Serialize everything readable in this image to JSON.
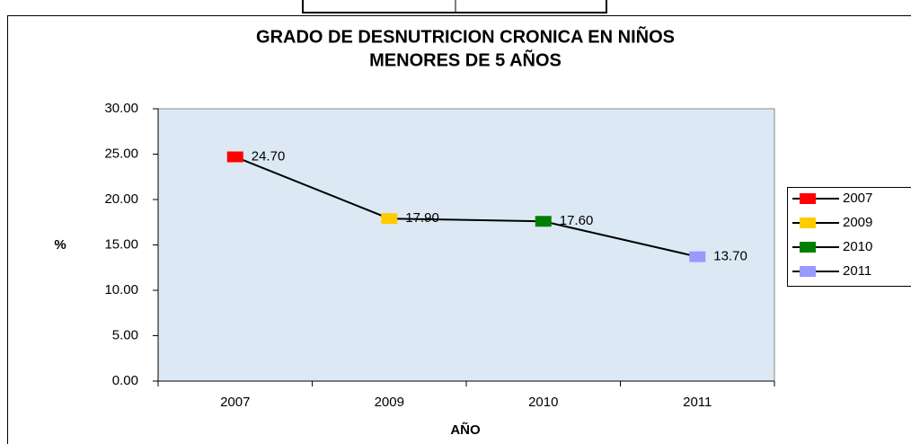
{
  "chart_data": {
    "type": "line",
    "title": [
      "GRADO DE DESNUTRICION CRONICA EN NIÑOS",
      "MENORES DE 5 AÑOS"
    ],
    "x_label": "AÑO",
    "y_label": "%",
    "categories": [
      "2007",
      "2009",
      "2010",
      "2011"
    ],
    "series": [
      {
        "color": "#000000",
        "point_colors": [
          "#ff0000",
          "#ffcc00",
          "#008000",
          "#9999ff"
        ],
        "values": [
          24.7,
          17.9,
          17.6,
          13.7
        ],
        "value_labels": [
          "24.70",
          "17.90",
          "17.60",
          "13.70"
        ]
      }
    ],
    "ylim": [
      0,
      30
    ],
    "yticks": [
      {
        "value": 0,
        "label": "0.00"
      },
      {
        "value": 5,
        "label": "5.00"
      },
      {
        "value": 10,
        "label": "10.00"
      },
      {
        "value": 15,
        "label": "15.00"
      },
      {
        "value": 20,
        "label": "20.00"
      },
      {
        "value": 25,
        "label": "25.00"
      },
      {
        "value": 30,
        "label": "30.00"
      }
    ],
    "grid": false,
    "legend": "right",
    "plot_background": "#dce9f5"
  }
}
